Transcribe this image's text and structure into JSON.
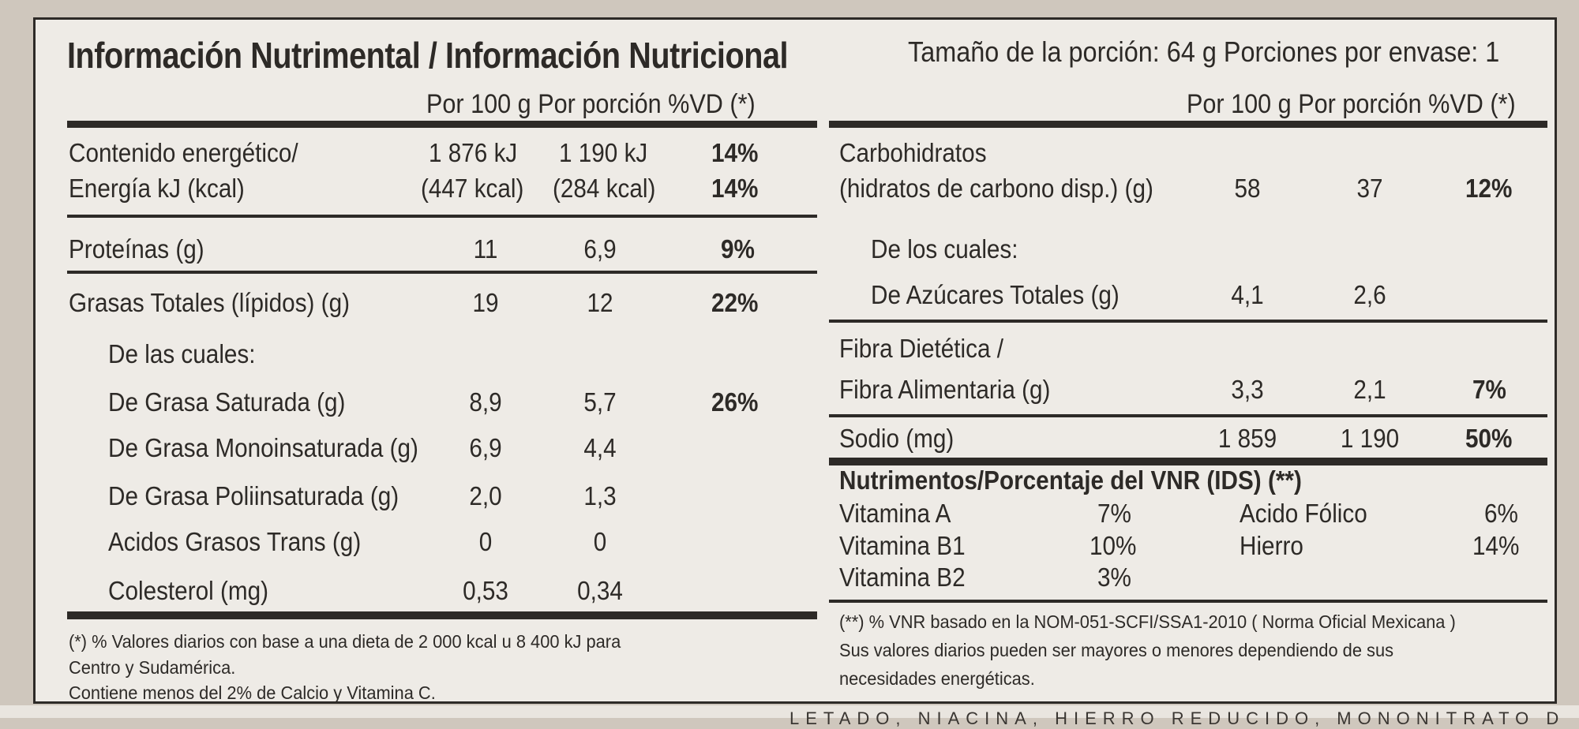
{
  "title": "Información Nutrimental / Información Nutricional",
  "serving_info": "Tamaño de la porción: 64 g Porciones por envase: 1",
  "left": {
    "header": "Por 100 g Por porción %VD (*)",
    "energy": {
      "label1": "Contenido energético/",
      "label2": "Energía kJ (kcal)",
      "per100_kj": "1 876 kJ",
      "per100_kcal": "(447 kcal)",
      "portion_kj": "1 190 kJ",
      "portion_kcal": "(284 kcal)",
      "vd1": "14%",
      "vd2": "14%"
    },
    "protein": {
      "label": "Proteínas (g)",
      "per100": "11",
      "portion": "6,9",
      "vd": "9%"
    },
    "fat": {
      "label": "Grasas Totales (lípidos) (g)",
      "per100": "19",
      "portion": "12",
      "vd": "22%"
    },
    "fat_sub_heading": "De las cuales:",
    "sat": {
      "label": "De Grasa Saturada (g)",
      "per100": "8,9",
      "portion": "5,7",
      "vd": "26%"
    },
    "mono": {
      "label": "De Grasa Monoinsaturada (g)",
      "per100": "6,9",
      "portion": "4,4"
    },
    "poly": {
      "label": "De Grasa Poliinsaturada (g)",
      "per100": "2,0",
      "portion": "1,3"
    },
    "trans": {
      "label": "Acidos Grasos Trans (g)",
      "per100": "0",
      "portion": "0"
    },
    "chol": {
      "label": "Colesterol (mg)",
      "per100": "0,53",
      "portion": "0,34"
    },
    "footnote1": "(*) % Valores diarios con base a una dieta de 2 000 kcal u 8 400 kJ para",
    "footnote2": "Centro y Sudamérica.",
    "footnote3": "Contiene menos del 2% de Calcio y Vitamina C."
  },
  "right": {
    "header": "Por 100 g Por porción %VD (*)",
    "carbs": {
      "label1": "Carbohidratos",
      "label2": "(hidratos de carbono disp.) (g)",
      "per100": "58",
      "portion": "37",
      "vd": "12%"
    },
    "carb_sub_heading": "De los cuales:",
    "sugar": {
      "label": "De Azúcares Totales (g)",
      "per100": "4,1",
      "portion": "2,6"
    },
    "fiber": {
      "label1": "Fibra Dietética /",
      "label2": "Fibra Alimentaria (g)",
      "per100": "3,3",
      "portion": "2,1",
      "vd": "7%"
    },
    "sodium": {
      "label": "Sodio (mg)",
      "per100": "1 859",
      "portion": "1 190",
      "vd": "50%"
    },
    "vnr_heading": "Nutrimentos/Porcentaje del VNR (IDS) (**)",
    "vitamins": [
      {
        "name": "Vitamina A",
        "value": "7%"
      },
      {
        "name": "Vitamina B1",
        "value": "10%"
      },
      {
        "name": "Vitamina B2",
        "value": "3%"
      }
    ],
    "minerals": [
      {
        "name": "Acido Fólico",
        "value": "6%"
      },
      {
        "name": "Hierro",
        "value": "14%"
      }
    ],
    "footnote1": "(**) % VNR basado en la NOM-051-SCFI/SSA1-2010 ( Norma Oficial Mexicana )",
    "footnote2": "Sus valores diarios pueden ser mayores o menores dependiendo de sus",
    "footnote3": "necesidades energéticas."
  },
  "bottom_text": "LETADO, NIACINA, HIERRO REDUCIDO, MONONITRATO DE"
}
